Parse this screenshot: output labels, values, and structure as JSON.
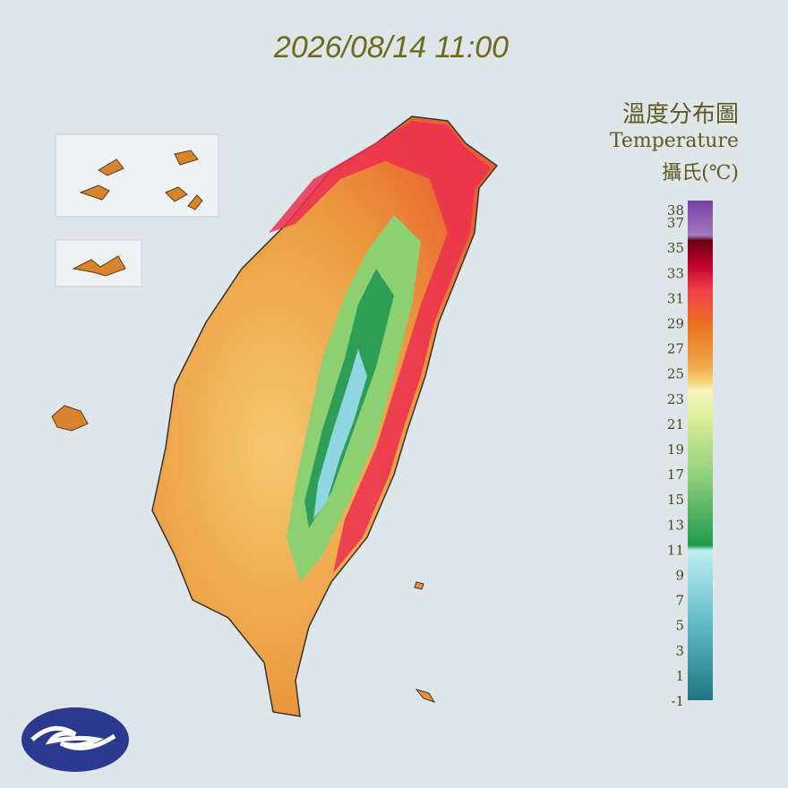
{
  "header": {
    "timestamp": "2026/08/14 11:00"
  },
  "legend": {
    "title": "溫度分布圖",
    "subtitle": "Temperature",
    "unit": "攝氏(℃)",
    "labels": [
      38,
      37,
      35,
      33,
      31,
      29,
      27,
      25,
      23,
      21,
      19,
      17,
      15,
      13,
      11,
      9,
      7,
      5,
      3,
      1,
      -1
    ]
  }
}
